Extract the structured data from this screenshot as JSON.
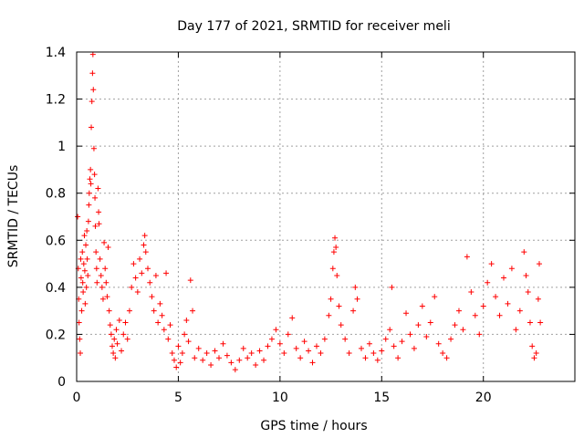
{
  "chart_data": {
    "type": "scatter",
    "title": "Day 177 of 2021, SRMTID for receiver meli",
    "xlabel": "GPS time / hours",
    "ylabel": "SRMTID / TECUs",
    "xlim": [
      0,
      24.5
    ],
    "ylim": [
      0,
      1.4
    ],
    "xticks": [
      0,
      5,
      10,
      15,
      20
    ],
    "xtick_labels": [
      "0",
      "5",
      "10",
      "15",
      "20"
    ],
    "yticks": [
      0,
      0.2,
      0.4,
      0.6,
      0.8,
      1.0,
      1.2,
      1.4
    ],
    "ytick_labels": [
      "0",
      "0.2",
      "0.4",
      "0.6",
      "0.8",
      "1",
      "1.2",
      "1.4"
    ],
    "grid": true,
    "marker": "+",
    "series": [
      {
        "name": "SRMTID",
        "color": "#ff0000",
        "points": [
          [
            0.05,
            0.7
          ],
          [
            0.08,
            0.48
          ],
          [
            0.1,
            0.35
          ],
          [
            0.12,
            0.25
          ],
          [
            0.15,
            0.18
          ],
          [
            0.18,
            0.12
          ],
          [
            0.2,
            0.52
          ],
          [
            0.22,
            0.44
          ],
          [
            0.25,
            0.3
          ],
          [
            0.28,
            0.55
          ],
          [
            0.3,
            0.42
          ],
          [
            0.32,
            0.38
          ],
          [
            0.35,
            0.5
          ],
          [
            0.38,
            0.62
          ],
          [
            0.4,
            0.47
          ],
          [
            0.42,
            0.33
          ],
          [
            0.45,
            0.58
          ],
          [
            0.48,
            0.4
          ],
          [
            0.5,
            0.64
          ],
          [
            0.52,
            0.52
          ],
          [
            0.55,
            0.45
          ],
          [
            0.58,
            0.68
          ],
          [
            0.6,
            0.75
          ],
          [
            0.62,
            0.8
          ],
          [
            0.65,
            0.86
          ],
          [
            0.68,
            0.9
          ],
          [
            0.7,
            0.84
          ],
          [
            0.72,
            1.08
          ],
          [
            0.75,
            1.19
          ],
          [
            0.78,
            1.31
          ],
          [
            0.8,
            1.39
          ],
          [
            0.82,
            1.24
          ],
          [
            0.85,
            0.99
          ],
          [
            0.88,
            0.88
          ],
          [
            0.9,
            0.78
          ],
          [
            0.92,
            0.66
          ],
          [
            0.95,
            0.55
          ],
          [
            0.98,
            0.48
          ],
          [
            1.0,
            0.42
          ],
          [
            1.05,
            0.82
          ],
          [
            1.08,
            0.72
          ],
          [
            1.1,
            0.67
          ],
          [
            1.15,
            0.52
          ],
          [
            1.2,
            0.45
          ],
          [
            1.25,
            0.4
          ],
          [
            1.3,
            0.35
          ],
          [
            1.35,
            0.59
          ],
          [
            1.4,
            0.48
          ],
          [
            1.45,
            0.42
          ],
          [
            1.5,
            0.36
          ],
          [
            1.55,
            0.57
          ],
          [
            1.6,
            0.3
          ],
          [
            1.65,
            0.24
          ],
          [
            1.7,
            0.2
          ],
          [
            1.75,
            0.15
          ],
          [
            1.8,
            0.12
          ],
          [
            1.85,
            0.18
          ],
          [
            1.9,
            0.1
          ],
          [
            1.95,
            0.22
          ],
          [
            2.0,
            0.16
          ],
          [
            2.1,
            0.26
          ],
          [
            2.2,
            0.13
          ],
          [
            2.3,
            0.2
          ],
          [
            2.4,
            0.25
          ],
          [
            2.5,
            0.18
          ],
          [
            2.6,
            0.3
          ],
          [
            2.7,
            0.4
          ],
          [
            2.8,
            0.5
          ],
          [
            2.9,
            0.44
          ],
          [
            3.0,
            0.38
          ],
          [
            3.1,
            0.52
          ],
          [
            3.2,
            0.46
          ],
          [
            3.3,
            0.58
          ],
          [
            3.35,
            0.62
          ],
          [
            3.4,
            0.55
          ],
          [
            3.5,
            0.48
          ],
          [
            3.6,
            0.42
          ],
          [
            3.7,
            0.36
          ],
          [
            3.8,
            0.3
          ],
          [
            3.9,
            0.45
          ],
          [
            4.0,
            0.25
          ],
          [
            4.1,
            0.33
          ],
          [
            4.2,
            0.28
          ],
          [
            4.3,
            0.22
          ],
          [
            4.4,
            0.46
          ],
          [
            4.5,
            0.18
          ],
          [
            4.6,
            0.24
          ],
          [
            4.7,
            0.12
          ],
          [
            4.8,
            0.09
          ],
          [
            4.9,
            0.06
          ],
          [
            5.0,
            0.15
          ],
          [
            5.1,
            0.08
          ],
          [
            5.2,
            0.12
          ],
          [
            5.3,
            0.2
          ],
          [
            5.4,
            0.26
          ],
          [
            5.5,
            0.17
          ],
          [
            5.6,
            0.43
          ],
          [
            5.7,
            0.3
          ],
          [
            5.8,
            0.1
          ],
          [
            6.0,
            0.14
          ],
          [
            6.2,
            0.09
          ],
          [
            6.4,
            0.12
          ],
          [
            6.6,
            0.07
          ],
          [
            6.8,
            0.13
          ],
          [
            7.0,
            0.1
          ],
          [
            7.2,
            0.16
          ],
          [
            7.4,
            0.11
          ],
          [
            7.6,
            0.08
          ],
          [
            7.8,
            0.05
          ],
          [
            8.0,
            0.09
          ],
          [
            8.2,
            0.14
          ],
          [
            8.4,
            0.1
          ],
          [
            8.6,
            0.12
          ],
          [
            8.8,
            0.07
          ],
          [
            9.0,
            0.13
          ],
          [
            9.2,
            0.09
          ],
          [
            9.4,
            0.15
          ],
          [
            9.6,
            0.18
          ],
          [
            9.8,
            0.22
          ],
          [
            10.0,
            0.16
          ],
          [
            10.2,
            0.12
          ],
          [
            10.4,
            0.2
          ],
          [
            10.6,
            0.27
          ],
          [
            10.8,
            0.14
          ],
          [
            11.0,
            0.1
          ],
          [
            11.2,
            0.17
          ],
          [
            11.4,
            0.13
          ],
          [
            11.6,
            0.08
          ],
          [
            11.8,
            0.15
          ],
          [
            12.0,
            0.12
          ],
          [
            12.2,
            0.18
          ],
          [
            12.4,
            0.28
          ],
          [
            12.5,
            0.35
          ],
          [
            12.6,
            0.48
          ],
          [
            12.65,
            0.55
          ],
          [
            12.7,
            0.61
          ],
          [
            12.75,
            0.57
          ],
          [
            12.8,
            0.45
          ],
          [
            12.9,
            0.32
          ],
          [
            13.0,
            0.24
          ],
          [
            13.2,
            0.18
          ],
          [
            13.4,
            0.12
          ],
          [
            13.6,
            0.3
          ],
          [
            13.7,
            0.4
          ],
          [
            13.8,
            0.35
          ],
          [
            14.0,
            0.14
          ],
          [
            14.2,
            0.1
          ],
          [
            14.4,
            0.16
          ],
          [
            14.6,
            0.12
          ],
          [
            14.8,
            0.09
          ],
          [
            15.0,
            0.13
          ],
          [
            15.2,
            0.18
          ],
          [
            15.4,
            0.22
          ],
          [
            15.5,
            0.4
          ],
          [
            15.6,
            0.15
          ],
          [
            15.8,
            0.1
          ],
          [
            16.0,
            0.17
          ],
          [
            16.2,
            0.29
          ],
          [
            16.4,
            0.2
          ],
          [
            16.6,
            0.14
          ],
          [
            16.8,
            0.24
          ],
          [
            17.0,
            0.32
          ],
          [
            17.2,
            0.19
          ],
          [
            17.4,
            0.25
          ],
          [
            17.6,
            0.36
          ],
          [
            17.8,
            0.16
          ],
          [
            18.0,
            0.12
          ],
          [
            18.2,
            0.1
          ],
          [
            18.4,
            0.18
          ],
          [
            18.6,
            0.24
          ],
          [
            18.8,
            0.3
          ],
          [
            19.0,
            0.22
          ],
          [
            19.2,
            0.53
          ],
          [
            19.4,
            0.38
          ],
          [
            19.6,
            0.28
          ],
          [
            19.8,
            0.2
          ],
          [
            20.0,
            0.32
          ],
          [
            20.2,
            0.42
          ],
          [
            20.4,
            0.5
          ],
          [
            20.6,
            0.36
          ],
          [
            20.8,
            0.28
          ],
          [
            21.0,
            0.44
          ],
          [
            21.2,
            0.33
          ],
          [
            21.4,
            0.48
          ],
          [
            21.6,
            0.22
          ],
          [
            21.8,
            0.3
          ],
          [
            22.0,
            0.55
          ],
          [
            22.1,
            0.45
          ],
          [
            22.2,
            0.38
          ],
          [
            22.3,
            0.25
          ],
          [
            22.4,
            0.15
          ],
          [
            22.5,
            0.1
          ],
          [
            22.6,
            0.12
          ],
          [
            22.7,
            0.35
          ],
          [
            22.75,
            0.5
          ],
          [
            22.8,
            0.25
          ]
        ]
      }
    ]
  }
}
